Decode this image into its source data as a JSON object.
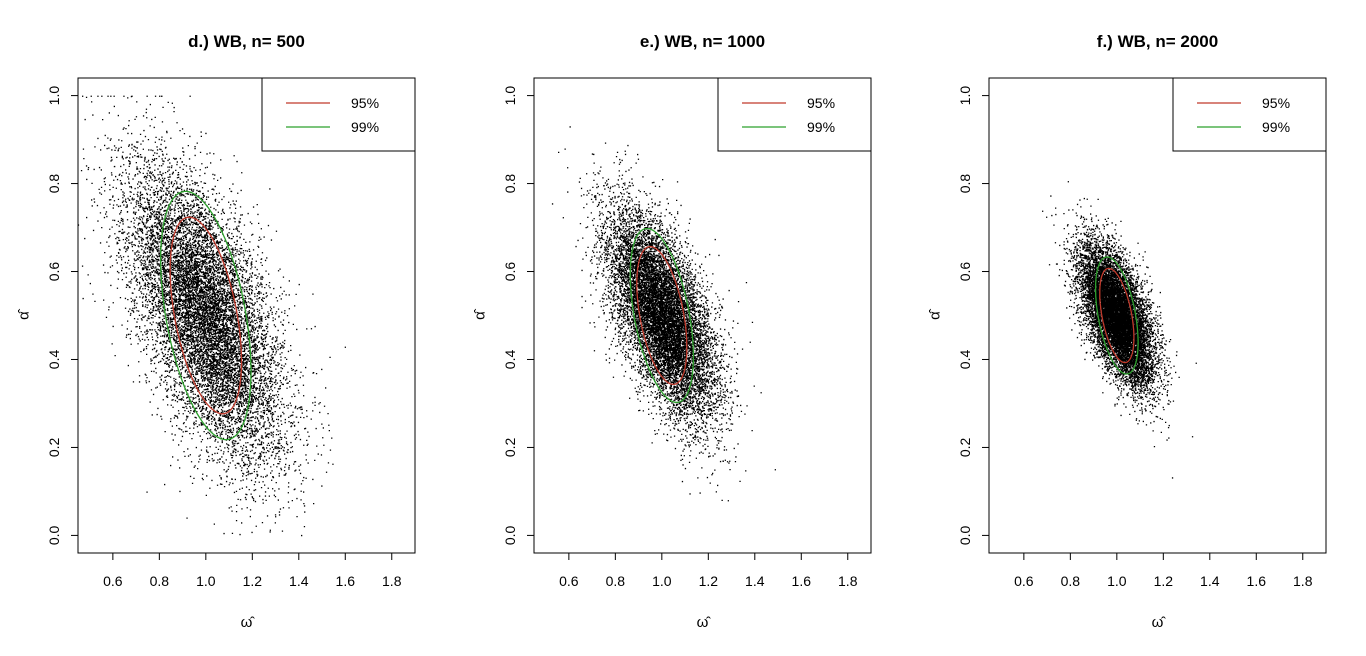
{
  "chart_data": [
    {
      "type": "scatter",
      "title": "d.)  WB, n= 500",
      "xlabel": "ω̂",
      "ylabel": "α̂",
      "xlim": [
        0.45,
        1.9
      ],
      "ylim": [
        -0.04,
        1.04
      ],
      "xticks": [
        0.6,
        0.8,
        1.0,
        1.2,
        1.4,
        1.6,
        1.8
      ],
      "yticks": [
        0.0,
        0.2,
        0.4,
        0.6,
        0.8,
        1.0
      ],
      "tick_labels_x": [
        "0.6",
        "0.8",
        "1.0",
        "1.2",
        "1.4",
        "1.6",
        "1.8"
      ],
      "tick_labels_y": [
        "0.0",
        "0.2",
        "0.4",
        "0.6",
        "0.8",
        "1.0"
      ],
      "grid": false,
      "legend_position": "top-right",
      "point_cloud": {
        "center": [
          1.0,
          0.5
        ],
        "sd": [
          0.165,
          0.165
        ],
        "correlation": -0.6,
        "clip_y": [
          0.0,
          1.0
        ]
      },
      "series": [
        {
          "name": "95%",
          "kind": "ellipse",
          "color": "#c0392b",
          "center": [
            1.0,
            0.5
          ],
          "semi_axes": [
            0.35,
            0.21
          ],
          "angle_deg": -49
        },
        {
          "name": "99%",
          "kind": "ellipse",
          "color": "#2ca02c",
          "center": [
            1.0,
            0.5
          ],
          "semi_axes": [
            0.44,
            0.27
          ],
          "angle_deg": -49
        }
      ]
    },
    {
      "type": "scatter",
      "title": "e.)  WB, n= 1000",
      "xlabel": "ω̂",
      "ylabel": "α̂",
      "xlim": [
        0.45,
        1.9
      ],
      "ylim": [
        -0.04,
        1.04
      ],
      "xticks": [
        0.6,
        0.8,
        1.0,
        1.2,
        1.4,
        1.6,
        1.8
      ],
      "yticks": [
        0.0,
        0.2,
        0.4,
        0.6,
        0.8,
        1.0
      ],
      "tick_labels_x": [
        "0.6",
        "0.8",
        "1.0",
        "1.2",
        "1.4",
        "1.6",
        "1.8"
      ],
      "tick_labels_y": [
        "0.0",
        "0.2",
        "0.4",
        "0.6",
        "0.8",
        "1.0"
      ],
      "grid": false,
      "legend_position": "top-right",
      "point_cloud": {
        "center": [
          1.0,
          0.5
        ],
        "sd": [
          0.115,
          0.115
        ],
        "correlation": -0.6,
        "clip_y": [
          0.0,
          1.0
        ]
      },
      "series": [
        {
          "name": "95%",
          "kind": "ellipse",
          "color": "#c0392b",
          "center": [
            1.0,
            0.5
          ],
          "semi_axes": [
            0.245,
            0.148
          ],
          "angle_deg": -49
        },
        {
          "name": "99%",
          "kind": "ellipse",
          "color": "#2ca02c",
          "center": [
            1.0,
            0.5
          ],
          "semi_axes": [
            0.31,
            0.185
          ],
          "angle_deg": -49
        }
      ]
    },
    {
      "type": "scatter",
      "title": "f.)  WB, n= 2000",
      "xlabel": "ω̂",
      "ylabel": "α̂",
      "xlim": [
        0.45,
        1.9
      ],
      "ylim": [
        -0.04,
        1.04
      ],
      "xticks": [
        0.6,
        0.8,
        1.0,
        1.2,
        1.4,
        1.6,
        1.8
      ],
      "yticks": [
        0.0,
        0.2,
        0.4,
        0.6,
        0.8,
        1.0
      ],
      "tick_labels_x": [
        "0.6",
        "0.8",
        "1.0",
        "1.2",
        "1.4",
        "1.6",
        "1.8"
      ],
      "tick_labels_y": [
        "0.0",
        "0.2",
        "0.4",
        "0.6",
        "0.8",
        "1.0"
      ],
      "grid": false,
      "legend_position": "top-right",
      "point_cloud": {
        "center": [
          1.0,
          0.5
        ],
        "sd": [
          0.078,
          0.078
        ],
        "correlation": -0.6,
        "clip_y": [
          0.0,
          1.0
        ]
      },
      "series": [
        {
          "name": "95%",
          "kind": "ellipse",
          "color": "#c0392b",
          "center": [
            1.0,
            0.5
          ],
          "semi_axes": [
            0.168,
            0.1
          ],
          "angle_deg": -49
        },
        {
          "name": "99%",
          "kind": "ellipse",
          "color": "#2ca02c",
          "center": [
            1.0,
            0.5
          ],
          "semi_axes": [
            0.208,
            0.126
          ],
          "angle_deg": -49
        }
      ]
    }
  ]
}
